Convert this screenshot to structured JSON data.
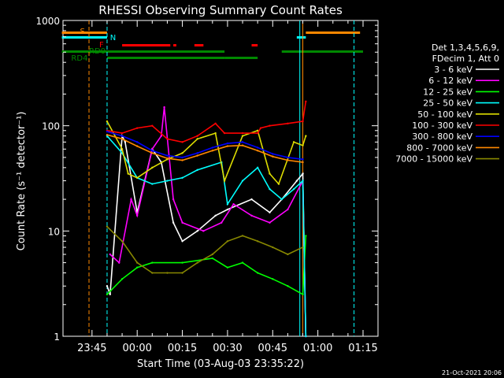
{
  "chart_data": {
    "type": "line",
    "title": "RHESSI Observing Summary Count Rates",
    "xlabel": "Start Time (03-Aug-03 23:35:22)",
    "ylabel": "Count Rate (s⁻¹ detector⁻¹)",
    "yscale": "log",
    "ylim": [
      1,
      1000
    ],
    "xlim_minutes_after_start": [
      0,
      104.6
    ],
    "x_ticks": [
      "23:45",
      "00:00",
      "00:15",
      "00:30",
      "00:45",
      "01:00",
      "01:15"
    ],
    "y_ticks": [
      "1",
      "10",
      "100",
      "1000"
    ],
    "footer_timestamp": "21-Oct-2021 20:06",
    "legend_header": [
      "Det 1,3,4,5,6,9,",
      "FDecim 1, Att 0"
    ],
    "flags": [
      {
        "name": "S",
        "color": "#ff8800"
      },
      {
        "name": "N",
        "color": "#00ffff"
      },
      {
        "name": "F",
        "color": "#ff0000"
      },
      {
        "name": "RD0",
        "color": "#008800"
      },
      {
        "name": "RD4",
        "color": "#008800"
      }
    ],
    "series": [
      {
        "name": "3 - 6 keV",
        "color": "#ffffff",
        "x": [
          "23:50",
          "23:51",
          "23:55",
          "23:56",
          "00:00",
          "00:05",
          "00:08",
          "00:12",
          "00:15",
          "00:20",
          "00:26",
          "00:30",
          "00:38",
          "00:44",
          "00:48",
          "00:53",
          "00:55",
          "00:56"
        ],
        "y": [
          3,
          2.5,
          80,
          70,
          15,
          60,
          45,
          12,
          8,
          10,
          14,
          16,
          20,
          15,
          20,
          30,
          35,
          1
        ]
      },
      {
        "name": "6 - 12 keV",
        "color": "#ff00ff",
        "x": [
          "23:51",
          "23:54",
          "23:58",
          "00:00",
          "00:05",
          "00:08",
          "00:09",
          "00:12",
          "00:15",
          "00:22",
          "00:28",
          "00:32",
          "00:38",
          "00:44",
          "00:50",
          "00:55",
          "00:56"
        ],
        "y": [
          6,
          5,
          20,
          14,
          60,
          80,
          150,
          20,
          12,
          10,
          12,
          18,
          14,
          12,
          16,
          30,
          1
        ]
      },
      {
        "name": "12 - 25 keV",
        "color": "#00ff00",
        "x": [
          "23:50",
          "23:55",
          "00:00",
          "00:05",
          "00:15",
          "00:25",
          "00:30",
          "00:35",
          "00:40",
          "00:45",
          "00:50",
          "00:55",
          "00:56"
        ],
        "y": [
          2.5,
          3.5,
          4.5,
          5,
          5,
          5.5,
          4.5,
          5,
          4,
          3.5,
          3,
          2.5,
          9
        ]
      },
      {
        "name": "25 - 50 keV",
        "color": "#00ffff",
        "x": [
          "23:50",
          "23:55",
          "00:00",
          "00:05",
          "00:10",
          "00:15",
          "00:20",
          "00:28",
          "00:30",
          "00:35",
          "00:40",
          "00:44",
          "00:48",
          "00:52",
          "00:55",
          "00:56"
        ],
        "y": [
          80,
          55,
          32,
          28,
          30,
          32,
          38,
          45,
          18,
          30,
          40,
          25,
          20,
          25,
          30,
          1
        ]
      },
      {
        "name": "50 - 100 keV",
        "color": "#dddd00",
        "x": [
          "23:50",
          "23:55",
          "23:57",
          "00:00",
          "00:05",
          "00:10",
          "00:15",
          "00:20",
          "00:26",
          "00:29",
          "00:35",
          "00:40",
          "00:44",
          "00:47",
          "00:52",
          "00:55",
          "00:56"
        ],
        "y": [
          110,
          60,
          35,
          32,
          40,
          48,
          55,
          75,
          85,
          30,
          80,
          90,
          35,
          28,
          70,
          65,
          80
        ]
      },
      {
        "name": "100 - 300 keV",
        "color": "#ff0000",
        "x": [
          "23:50",
          "23:55",
          "00:00",
          "00:05",
          "00:10",
          "00:15",
          "00:20",
          "00:26",
          "00:29",
          "00:35",
          "00:40",
          "00:41",
          "00:44",
          "00:50",
          "00:55",
          "00:56"
        ],
        "y": [
          90,
          85,
          95,
          100,
          75,
          70,
          80,
          105,
          85,
          85,
          85,
          95,
          100,
          105,
          110,
          170
        ]
      },
      {
        "name": "300 - 800 keV",
        "color": "#0000ff",
        "x": [
          "23:50",
          "23:55",
          "00:00",
          "00:05",
          "00:10",
          "00:15",
          "00:20",
          "00:25",
          "00:30",
          "00:35",
          "00:40",
          "00:45",
          "00:50",
          "00:55"
        ],
        "y": [
          88,
          80,
          70,
          58,
          52,
          50,
          55,
          62,
          68,
          70,
          62,
          54,
          50,
          48
        ]
      },
      {
        "name": "800 - 7000 keV",
        "color": "#ff8800",
        "x": [
          "23:50",
          "23:55",
          "00:00",
          "00:05",
          "00:10",
          "00:15",
          "00:20",
          "00:25",
          "00:30",
          "00:35",
          "00:40",
          "00:45",
          "00:50",
          "00:55"
        ],
        "y": [
          82,
          75,
          64,
          55,
          49,
          47,
          52,
          58,
          64,
          65,
          58,
          51,
          47,
          45
        ]
      },
      {
        "name": "7000 - 15000 keV",
        "color": "#888800",
        "x": [
          "23:50",
          "23:55",
          "00:00",
          "00:05",
          "00:10",
          "00:15",
          "00:20",
          "00:25",
          "00:30",
          "00:35",
          "00:40",
          "00:45",
          "00:50",
          "00:55"
        ],
        "y": [
          11,
          8,
          5,
          4,
          4,
          4,
          5,
          6,
          8,
          9,
          8,
          7,
          6,
          7
        ]
      }
    ]
  }
}
